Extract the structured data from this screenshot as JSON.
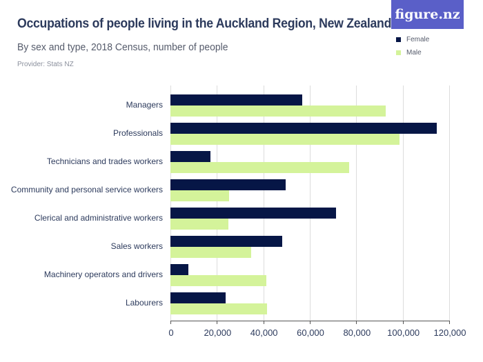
{
  "header": {
    "title": "Occupations of people living in the Auckland Region, New Zealand",
    "subtitle": "By sex and type, 2018 Census, number of people",
    "provider": "Provider: Stats NZ",
    "logo": "figure.nz"
  },
  "legend": [
    {
      "label": "Female",
      "color": "#061646"
    },
    {
      "label": "Male",
      "color": "#d4f39a"
    }
  ],
  "axis": {
    "ticks": [
      "0",
      "20,000",
      "40,000",
      "60,000",
      "80,000",
      "100,000",
      "120,000"
    ]
  },
  "chart_data": {
    "type": "bar",
    "orientation": "horizontal",
    "title": "Occupations of people living in the Auckland Region, New Zealand",
    "subtitle": "By sex and type, 2018 Census, number of people",
    "xlabel": "",
    "ylabel": "",
    "xlim": [
      0,
      120000
    ],
    "grid": true,
    "legend_position": "top-right",
    "categories": [
      "Managers",
      "Professionals",
      "Technicians and trades workers",
      "Community and personal service workers",
      "Clerical and administrative workers",
      "Sales workers",
      "Machinery operators and drivers",
      "Labourers"
    ],
    "series": [
      {
        "name": "Female",
        "color": "#061646",
        "values": [
          56700,
          114800,
          17300,
          49500,
          71400,
          48000,
          7600,
          23900
        ]
      },
      {
        "name": "Male",
        "color": "#d4f39a",
        "values": [
          92700,
          98700,
          77000,
          25300,
          25000,
          34800,
          41300,
          41700
        ]
      }
    ]
  }
}
